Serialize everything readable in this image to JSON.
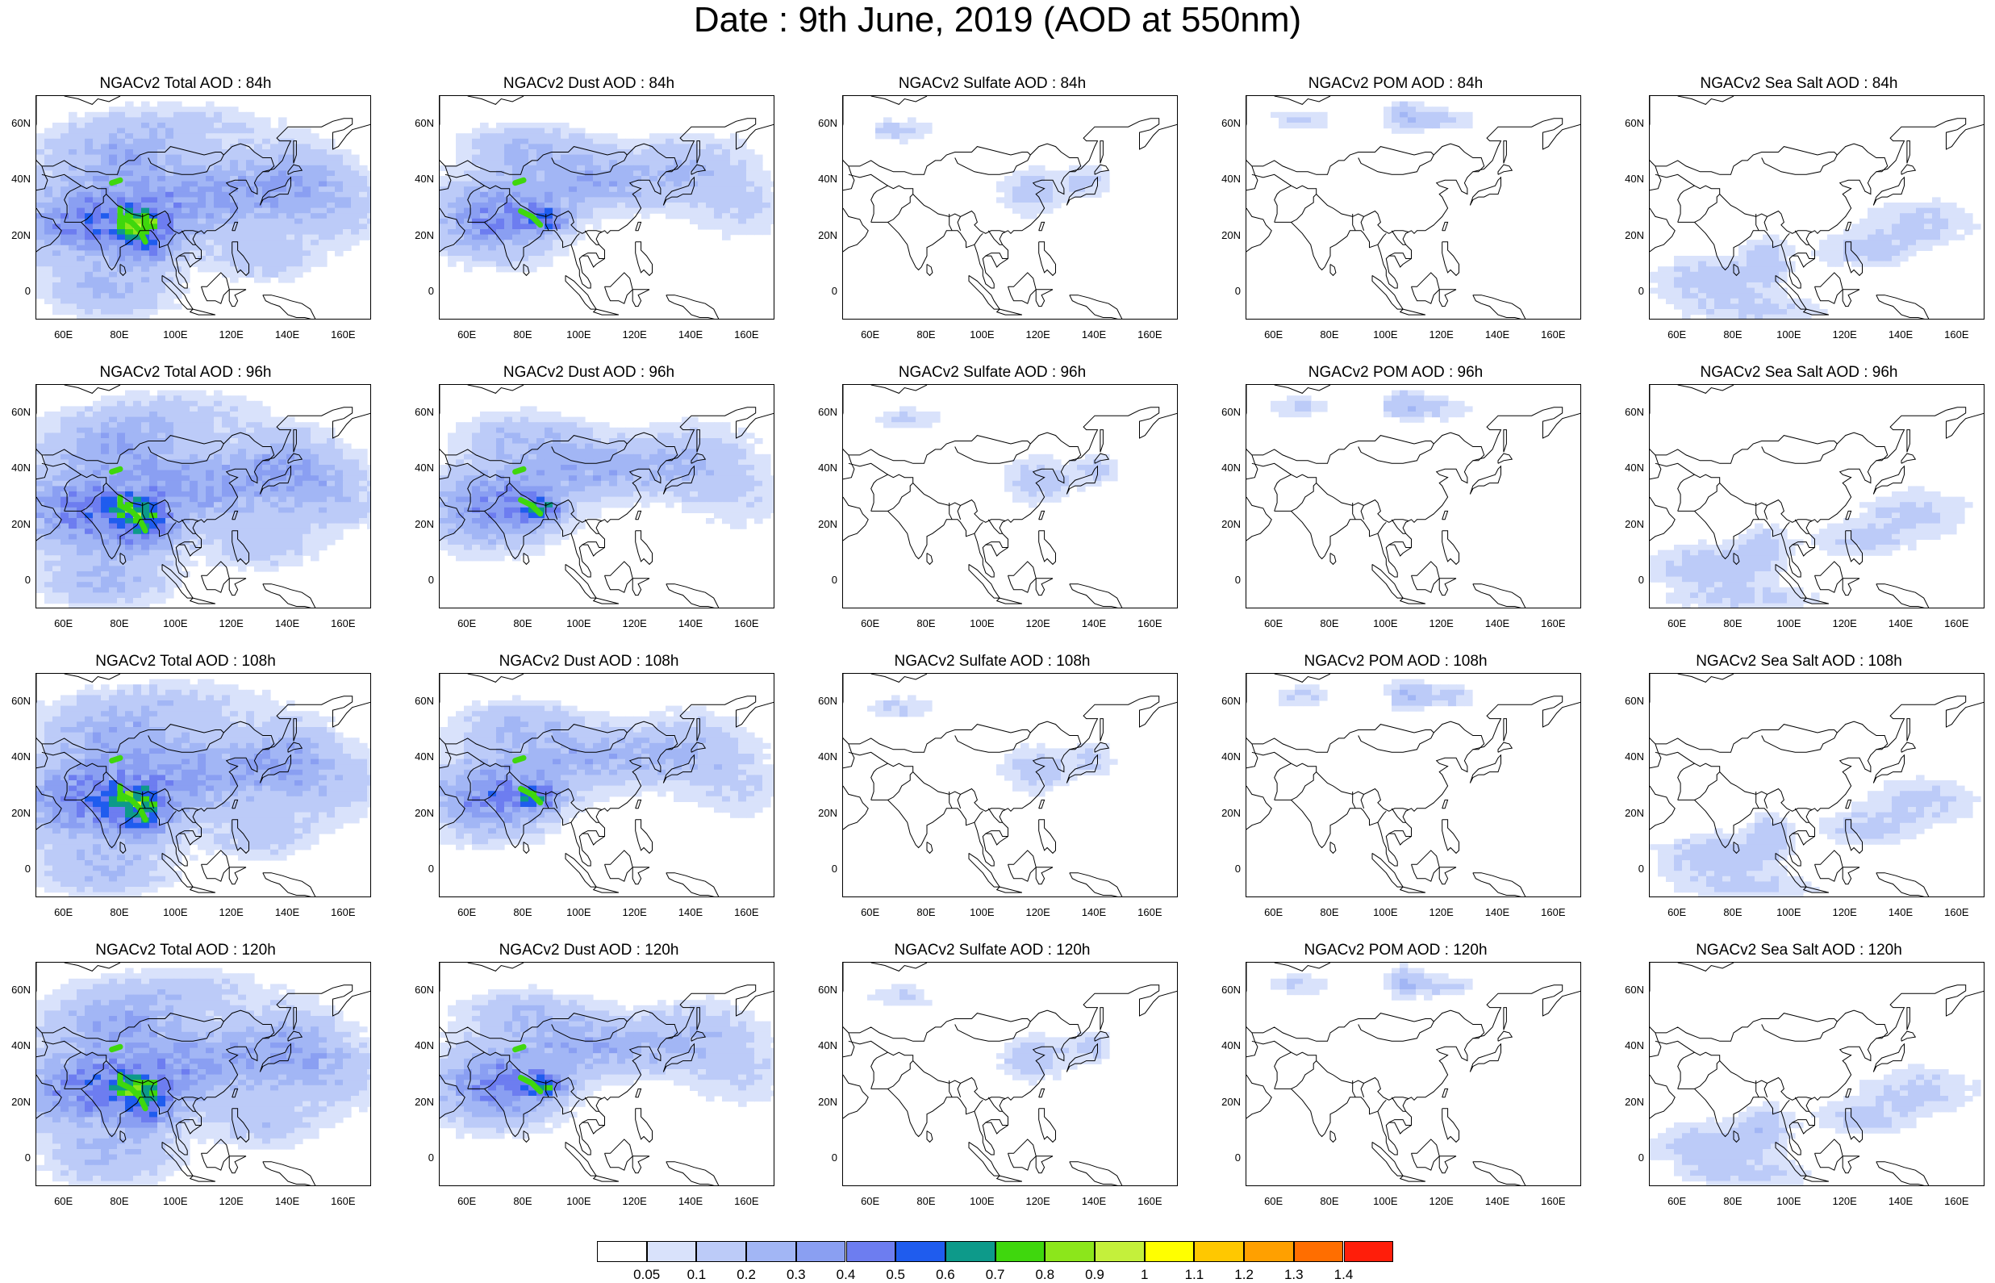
{
  "title": "Date : 9th June, 2019 (AOD at 550nm)",
  "y_ticks": [
    "60N",
    "40N",
    "20N",
    "0"
  ],
  "x_ticks": [
    "60E",
    "80E",
    "100E",
    "120E",
    "140E",
    "160E"
  ],
  "panels": [
    {
      "title": "NGACv2 Total AOD : 84h",
      "species": "total",
      "hour": 84
    },
    {
      "title": "NGACv2 Dust AOD : 84h",
      "species": "dust",
      "hour": 84
    },
    {
      "title": "NGACv2 Sulfate AOD : 84h",
      "species": "sulfate",
      "hour": 84
    },
    {
      "title": "NGACv2 POM AOD : 84h",
      "species": "pom",
      "hour": 84
    },
    {
      "title": "NGACv2 Sea Salt AOD : 84h",
      "species": "seasalt",
      "hour": 84
    },
    {
      "title": "NGACv2 Total AOD : 96h",
      "species": "total",
      "hour": 96
    },
    {
      "title": "NGACv2 Dust AOD : 96h",
      "species": "dust",
      "hour": 96
    },
    {
      "title": "NGACv2 Sulfate AOD : 96h",
      "species": "sulfate",
      "hour": 96
    },
    {
      "title": "NGACv2 POM AOD : 96h",
      "species": "pom",
      "hour": 96
    },
    {
      "title": "NGACv2 Sea Salt AOD : 96h",
      "species": "seasalt",
      "hour": 96
    },
    {
      "title": "NGACv2 Total AOD : 108h",
      "species": "total",
      "hour": 108
    },
    {
      "title": "NGACv2 Dust AOD : 108h",
      "species": "dust",
      "hour": 108
    },
    {
      "title": "NGACv2 Sulfate AOD : 108h",
      "species": "sulfate",
      "hour": 108
    },
    {
      "title": "NGACv2 POM AOD : 108h",
      "species": "pom",
      "hour": 108
    },
    {
      "title": "NGACv2 Sea Salt AOD : 108h",
      "species": "seasalt",
      "hour": 108
    },
    {
      "title": "NGACv2 Total AOD : 120h",
      "species": "total",
      "hour": 120
    },
    {
      "title": "NGACv2 Dust AOD : 120h",
      "species": "dust",
      "hour": 120
    },
    {
      "title": "NGACv2 Sulfate AOD : 120h",
      "species": "sulfate",
      "hour": 120
    },
    {
      "title": "NGACv2 POM AOD : 120h",
      "species": "pom",
      "hour": 120
    },
    {
      "title": "NGACv2 Sea Salt  AOD : 120h",
      "species": "seasalt",
      "hour": 120
    }
  ],
  "colorbar": {
    "labels": [
      "0.05",
      "0.1",
      "0.2",
      "0.3",
      "0.4",
      "0.5",
      "0.6",
      "0.7",
      "0.8",
      "0.9",
      "1",
      "1.1",
      "1.2",
      "1.3",
      "1.4"
    ],
    "colors": [
      "#ffffff",
      "#d9e2fb",
      "#bccbf8",
      "#a2b6f5",
      "#8a9ff2",
      "#6d7df0",
      "#1f5cee",
      "#0d9a8a",
      "#3fd70d",
      "#8ce61b",
      "#c4f03b",
      "#ffff00",
      "#ffc800",
      "#ffa000",
      "#ff6e00",
      "#ff1e0a"
    ]
  }
}
